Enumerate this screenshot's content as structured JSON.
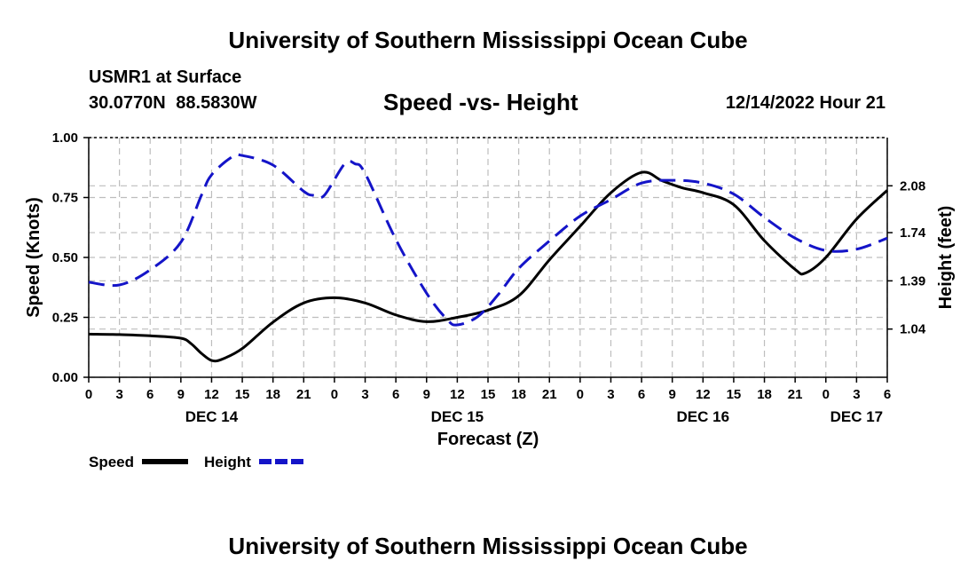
{
  "header": {
    "title": "University of Southern Mississippi Ocean Cube",
    "station": "USMR1 at Surface",
    "coordinates": "30.0770N  88.5830W",
    "subtitle": "Speed -vs- Height",
    "datetime": "12/14/2022 Hour 21"
  },
  "footer": {
    "title": "University of Southern Mississippi Ocean Cube"
  },
  "chart_data": {
    "type": "line",
    "title": "Speed -vs- Height",
    "xlabel": "Forecast (Z)",
    "ylabel": "Speed (Knots)",
    "y2label": "Height (feet)",
    "x_unit": "hours since 2022-12-14 00Z",
    "xlim": [
      0,
      78
    ],
    "ylim": [
      0,
      1.0
    ],
    "y2lim": [
      0.69,
      2.43
    ],
    "x_ticks": [
      0,
      3,
      6,
      9,
      12,
      15,
      18,
      21,
      24,
      27,
      30,
      33,
      36,
      39,
      42,
      45,
      48,
      51,
      54,
      57,
      60,
      63,
      66,
      69,
      72,
      75,
      78
    ],
    "x_tick_labels": [
      "0",
      "3",
      "6",
      "9",
      "12",
      "15",
      "18",
      "21",
      "0",
      "3",
      "6",
      "9",
      "12",
      "15",
      "18",
      "21",
      "0",
      "3",
      "6",
      "9",
      "12",
      "15",
      "18",
      "21",
      "0",
      "3",
      "6"
    ],
    "date_labels": [
      {
        "x": 12,
        "label": "DEC 14"
      },
      {
        "x": 36,
        "label": "DEC 15"
      },
      {
        "x": 60,
        "label": "DEC 16"
      },
      {
        "x": 75,
        "label": "DEC 17"
      }
    ],
    "y_ticks": [
      0.0,
      0.25,
      0.5,
      0.75,
      1.0
    ],
    "y_tick_labels": [
      "0.00",
      "0.25",
      "0.50",
      "0.75",
      "1.00"
    ],
    "y2_ticks": [
      1.04,
      1.39,
      1.74,
      2.08
    ],
    "y2_tick_labels": [
      "1.04",
      "1.39",
      "1.74",
      "2.08"
    ],
    "grid": true,
    "legend": {
      "placement": "bottom-left",
      "entries": [
        {
          "name": "Speed",
          "color": "#000000",
          "style": "solid"
        },
        {
          "name": "Height",
          "color": "#1414c8",
          "style": "dashed"
        }
      ]
    },
    "series": [
      {
        "name": "Speed",
        "axis": "left",
        "color": "#000000",
        "style": "solid",
        "x": [
          0,
          3,
          6,
          9,
          10,
          11,
          12,
          13,
          15,
          18,
          21,
          24,
          27,
          30,
          33,
          36,
          39,
          42,
          45,
          48,
          51,
          54,
          56,
          58,
          60,
          63,
          66,
          69,
          70,
          72,
          75,
          78
        ],
        "values": [
          0.18,
          0.178,
          0.173,
          0.163,
          0.14,
          0.1,
          0.07,
          0.075,
          0.12,
          0.23,
          0.31,
          0.332,
          0.31,
          0.26,
          0.232,
          0.25,
          0.28,
          0.34,
          0.49,
          0.63,
          0.77,
          0.855,
          0.82,
          0.79,
          0.77,
          0.72,
          0.57,
          0.45,
          0.435,
          0.5,
          0.66,
          0.78
        ]
      },
      {
        "name": "Height",
        "axis": "right",
        "color": "#1414c8",
        "style": "dashed",
        "x": [
          0,
          3,
          6,
          9,
          11,
          12,
          14,
          15,
          18,
          21,
          22,
          23,
          25,
          26,
          27,
          30,
          33,
          35,
          36,
          38,
          40,
          42,
          45,
          48,
          51,
          54,
          57,
          60,
          63,
          66,
          69,
          72,
          75,
          78
        ],
        "values": [
          1.38,
          1.36,
          1.47,
          1.67,
          2.01,
          2.16,
          2.29,
          2.3,
          2.23,
          2.04,
          2.01,
          2.01,
          2.24,
          2.24,
          2.17,
          1.69,
          1.3,
          1.11,
          1.07,
          1.13,
          1.29,
          1.48,
          1.68,
          1.86,
          1.98,
          2.1,
          2.12,
          2.1,
          2.02,
          1.85,
          1.7,
          1.61,
          1.62,
          1.7
        ]
      }
    ]
  }
}
